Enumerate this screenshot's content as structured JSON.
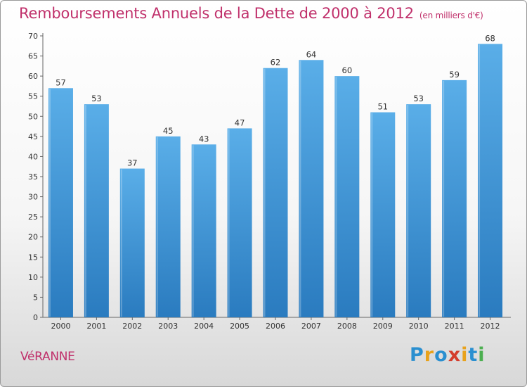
{
  "header": {
    "title": "Remboursements Annuels de la Dette de 2000 à 2012",
    "unit": "(en milliers d'€)"
  },
  "footer": {
    "commune": "VéRANNE",
    "logo": {
      "text": "Proxiti",
      "colors": [
        "#2a8fd0",
        "#e8a21c",
        "#2a8fd0",
        "#d43c2c",
        "#e8a21c",
        "#2a8fd0",
        "#4caf50"
      ]
    }
  },
  "chart_data": {
    "type": "bar",
    "categories": [
      "2000",
      "2001",
      "2002",
      "2003",
      "2004",
      "2005",
      "2006",
      "2007",
      "2008",
      "2009",
      "2010",
      "2011",
      "2012"
    ],
    "values": [
      57,
      53,
      37,
      45,
      43,
      47,
      62,
      64,
      60,
      51,
      53,
      59,
      68
    ],
    "ylim": [
      0,
      70
    ],
    "yticks": [
      0,
      5,
      10,
      15,
      20,
      25,
      30,
      35,
      40,
      45,
      50,
      55,
      60,
      65,
      70
    ],
    "grid": false,
    "colors": {
      "bar_top": "#5aaee8",
      "bar_bottom": "#2a7bbf"
    }
  }
}
